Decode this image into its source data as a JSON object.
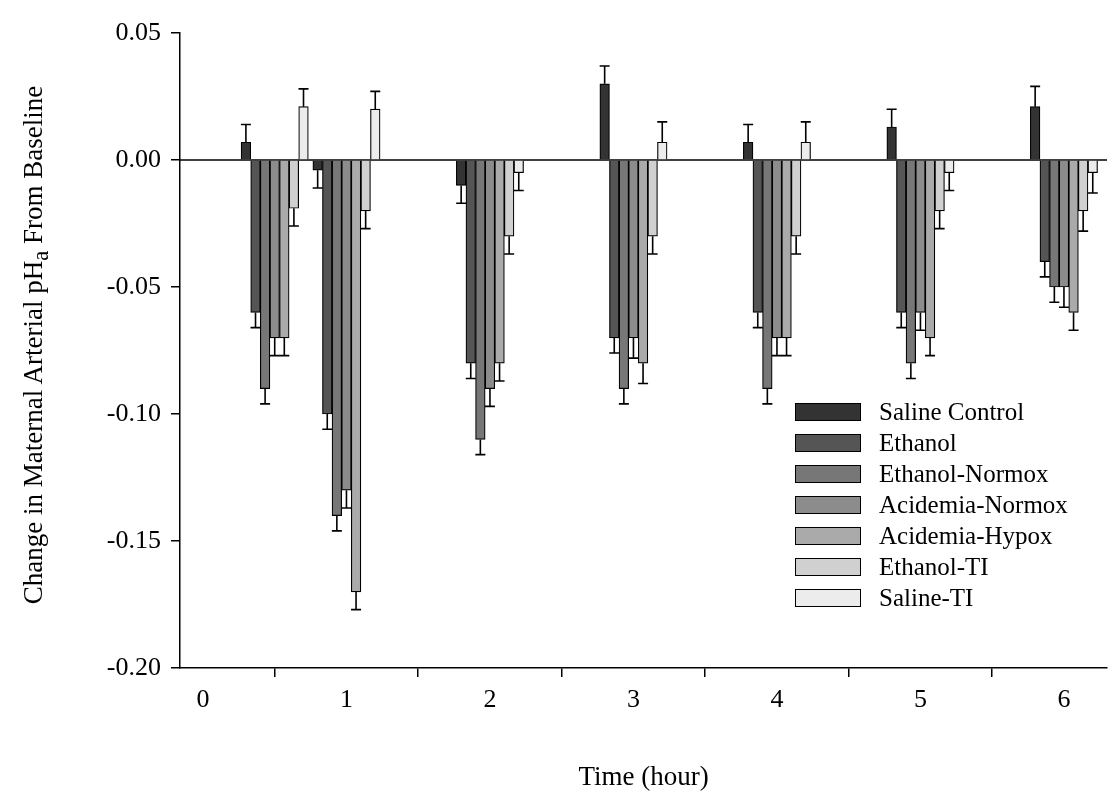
{
  "chart_data": {
    "type": "bar",
    "xlabel": "Time (hour)",
    "ylabel": "Change in Maternal Arterial pH$_{a}$ From Baseline",
    "x": [
      0.5,
      1,
      2,
      3,
      4,
      5,
      6
    ],
    "series": [
      {
        "name": "Saline Control",
        "color": "#333333",
        "values": [
          0.007,
          -0.004,
          -0.01,
          0.03,
          0.007,
          0.013,
          0.021
        ],
        "errors": [
          [
            0.007,
            0.014
          ],
          [
            -0.011,
            -0.004
          ],
          [
            -0.017,
            -0.01
          ],
          [
            0.03,
            0.037
          ],
          [
            0.007,
            0.014
          ],
          [
            0.013,
            0.02
          ],
          [
            0.021,
            0.029
          ]
        ]
      },
      {
        "name": "Ethanol",
        "color": "#555555",
        "values": [
          -0.06,
          -0.1,
          -0.08,
          -0.07,
          -0.06,
          -0.06,
          -0.04
        ],
        "errors": [
          [
            -0.066,
            -0.06
          ],
          [
            -0.106,
            -0.1
          ],
          [
            -0.086,
            -0.08
          ],
          [
            -0.076,
            -0.07
          ],
          [
            -0.066,
            -0.06
          ],
          [
            -0.066,
            -0.06
          ],
          [
            -0.046,
            -0.04
          ]
        ]
      },
      {
        "name": "Ethanol-Normox",
        "color": "#777777",
        "values": [
          -0.09,
          -0.14,
          -0.11,
          -0.09,
          -0.09,
          -0.08,
          -0.05
        ],
        "errors": [
          [
            -0.096,
            -0.09
          ],
          [
            -0.146,
            -0.14
          ],
          [
            -0.116,
            -0.11
          ],
          [
            -0.096,
            -0.09
          ],
          [
            -0.096,
            -0.09
          ],
          [
            -0.086,
            -0.08
          ],
          [
            -0.056,
            -0.05
          ]
        ]
      },
      {
        "name": "Acidemia-Normox",
        "color": "#8c8c8c",
        "values": [
          -0.07,
          -0.13,
          -0.09,
          -0.07,
          -0.07,
          -0.06,
          -0.05
        ],
        "errors": [
          [
            -0.077,
            -0.07
          ],
          [
            -0.137,
            -0.13
          ],
          [
            -0.097,
            -0.09
          ],
          [
            -0.078,
            -0.07
          ],
          [
            -0.077,
            -0.07
          ],
          [
            -0.067,
            -0.06
          ],
          [
            -0.058,
            -0.05
          ]
        ]
      },
      {
        "name": "Acidemia-Hypox",
        "color": "#aaaaaa",
        "values": [
          -0.07,
          -0.17,
          -0.08,
          -0.08,
          -0.07,
          -0.07,
          -0.06
        ],
        "errors": [
          [
            -0.077,
            -0.07
          ],
          [
            -0.177,
            -0.17
          ],
          [
            -0.087,
            -0.08
          ],
          [
            -0.088,
            -0.08
          ],
          [
            -0.077,
            -0.07
          ],
          [
            -0.077,
            -0.07
          ],
          [
            -0.067,
            -0.06
          ]
        ]
      },
      {
        "name": "Ethanol-TI",
        "color": "#d0d0d0",
        "values": [
          -0.019,
          -0.02,
          -0.03,
          -0.03,
          -0.03,
          -0.02,
          -0.02
        ],
        "errors": [
          [
            -0.026,
            -0.019
          ],
          [
            -0.027,
            -0.02
          ],
          [
            -0.037,
            -0.03
          ],
          [
            -0.037,
            -0.03
          ],
          [
            -0.037,
            -0.03
          ],
          [
            -0.027,
            -0.02
          ],
          [
            -0.028,
            -0.02
          ]
        ]
      },
      {
        "name": "Saline-TI",
        "color": "#ececec",
        "values": [
          0.021,
          0.02,
          -0.005,
          0.007,
          0.007,
          -0.005,
          -0.005
        ],
        "errors": [
          [
            0.021,
            0.028
          ],
          [
            0.02,
            0.027
          ],
          [
            -0.012,
            -0.005
          ],
          [
            0.007,
            0.015
          ],
          [
            0.007,
            0.015
          ],
          [
            -0.012,
            -0.005
          ],
          [
            -0.013,
            -0.005
          ]
        ]
      }
    ],
    "xlim": [
      -0.16,
      6.3
    ],
    "xticks": [
      0,
      1,
      2,
      3,
      4,
      5,
      6
    ],
    "ylim": [
      -0.2,
      0.05
    ],
    "yticks": [
      {
        "value": -0.2,
        "label": "-0.20"
      },
      {
        "value": -0.15,
        "label": "-0.15"
      },
      {
        "value": -0.1,
        "label": "-0.10"
      },
      {
        "value": -0.05,
        "label": "-0.05"
      },
      {
        "value": 0,
        "label": "0.00"
      },
      {
        "value": 0.05,
        "label": "0.05"
      }
    ],
    "ref_lines": [
      {
        "axis": "y",
        "value": 0
      }
    ],
    "grid": false,
    "legend": "bottom right"
  }
}
